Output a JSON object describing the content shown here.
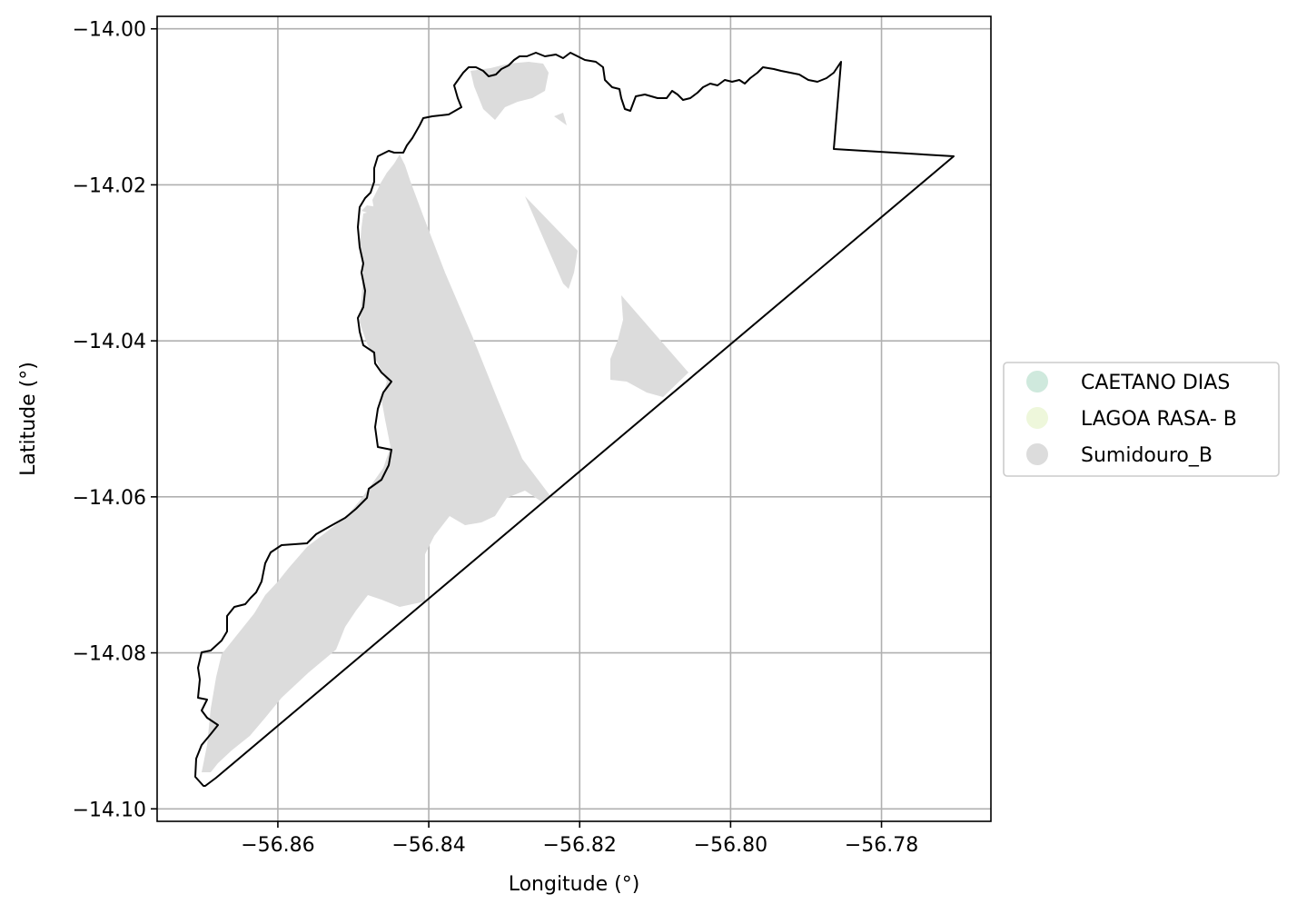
{
  "chart_data": {
    "type": "map",
    "xlabel": "Longitude (°)",
    "ylabel": "Latitude (°)",
    "xlim": [
      -56.876,
      -56.7655
    ],
    "ylim": [
      -14.1016,
      -13.9984
    ],
    "xticks": [
      -56.86,
      -56.84,
      -56.82,
      -56.8,
      -56.78
    ],
    "xtick_labels": [
      "−56.86",
      "−56.84",
      "−56.82",
      "−56.80",
      "−56.78"
    ],
    "yticks": [
      -14.0,
      -14.02,
      -14.04,
      -14.06,
      -14.08,
      -14.1
    ],
    "ytick_labels": [
      "−14.00",
      "−14.02",
      "−14.04",
      "−14.06",
      "−14.08",
      "−14.10"
    ],
    "grid": true,
    "legend_placement": "center-right outside",
    "legend": [
      {
        "label": "CAETANO DIAS",
        "color": "#cfe9dd"
      },
      {
        "label": "LAGOA RASA- B",
        "color": "#eef7db"
      },
      {
        "label": "Sumidouro_B",
        "color": "#dcdcdc"
      }
    ],
    "boundary_color": "#000000",
    "fill_color": "#dcdcdc"
  }
}
